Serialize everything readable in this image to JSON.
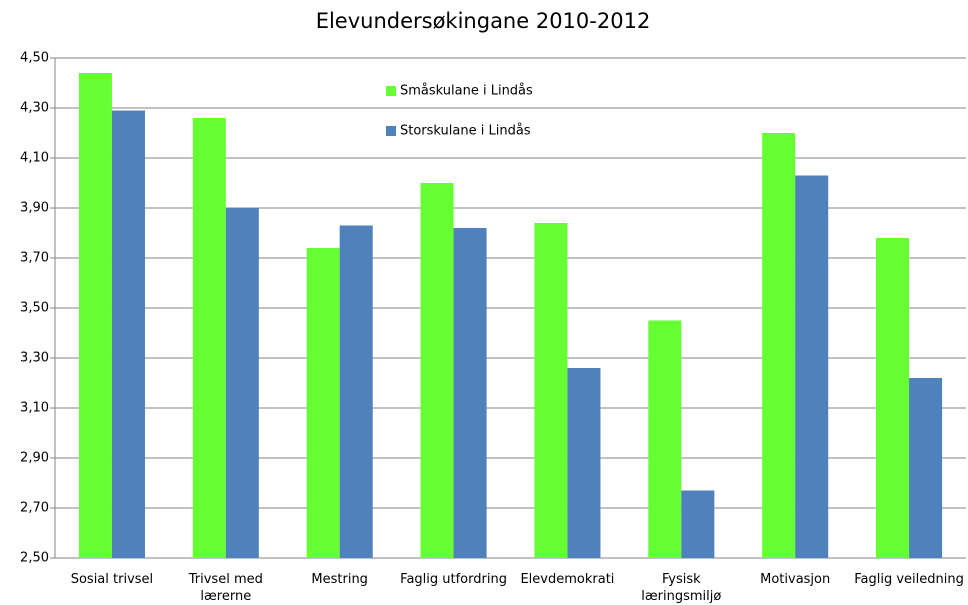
{
  "chart_data": {
    "type": "bar",
    "title": "Elevundersøkingane 2010-2012",
    "categories": [
      "Sosial trivsel",
      "Trivsel med lærerne",
      "Mestring",
      "Faglig utfordring",
      "Elevdemokrati",
      "Fysisk læringsmiljø",
      "Motivasjon",
      "Faglig veiledning"
    ],
    "series": [
      {
        "name": "Småskulane i Lindås",
        "color": "#66ff33",
        "values": [
          4.44,
          4.26,
          3.74,
          4.0,
          3.84,
          3.45,
          4.2,
          3.78
        ]
      },
      {
        "name": "Storskulane i Lindås",
        "color": "#4f81bd",
        "values": [
          4.29,
          3.9,
          3.83,
          3.82,
          3.26,
          2.77,
          4.03,
          3.22
        ]
      }
    ],
    "ylim": [
      2.5,
      4.5
    ],
    "yticks": [
      {
        "value": 2.5,
        "label": "2,50"
      },
      {
        "value": 2.7,
        "label": "2,70"
      },
      {
        "value": 2.9,
        "label": "2,90"
      },
      {
        "value": 3.1,
        "label": "3,10"
      },
      {
        "value": 3.3,
        "label": "3,30"
      },
      {
        "value": 3.5,
        "label": "3,50"
      },
      {
        "value": 3.7,
        "label": "3,70"
      },
      {
        "value": 3.9,
        "label": "3,90"
      },
      {
        "value": 4.1,
        "label": "4,10"
      },
      {
        "value": 4.3,
        "label": "4,30"
      },
      {
        "value": 4.5,
        "label": "4,50"
      }
    ],
    "grid": true
  }
}
